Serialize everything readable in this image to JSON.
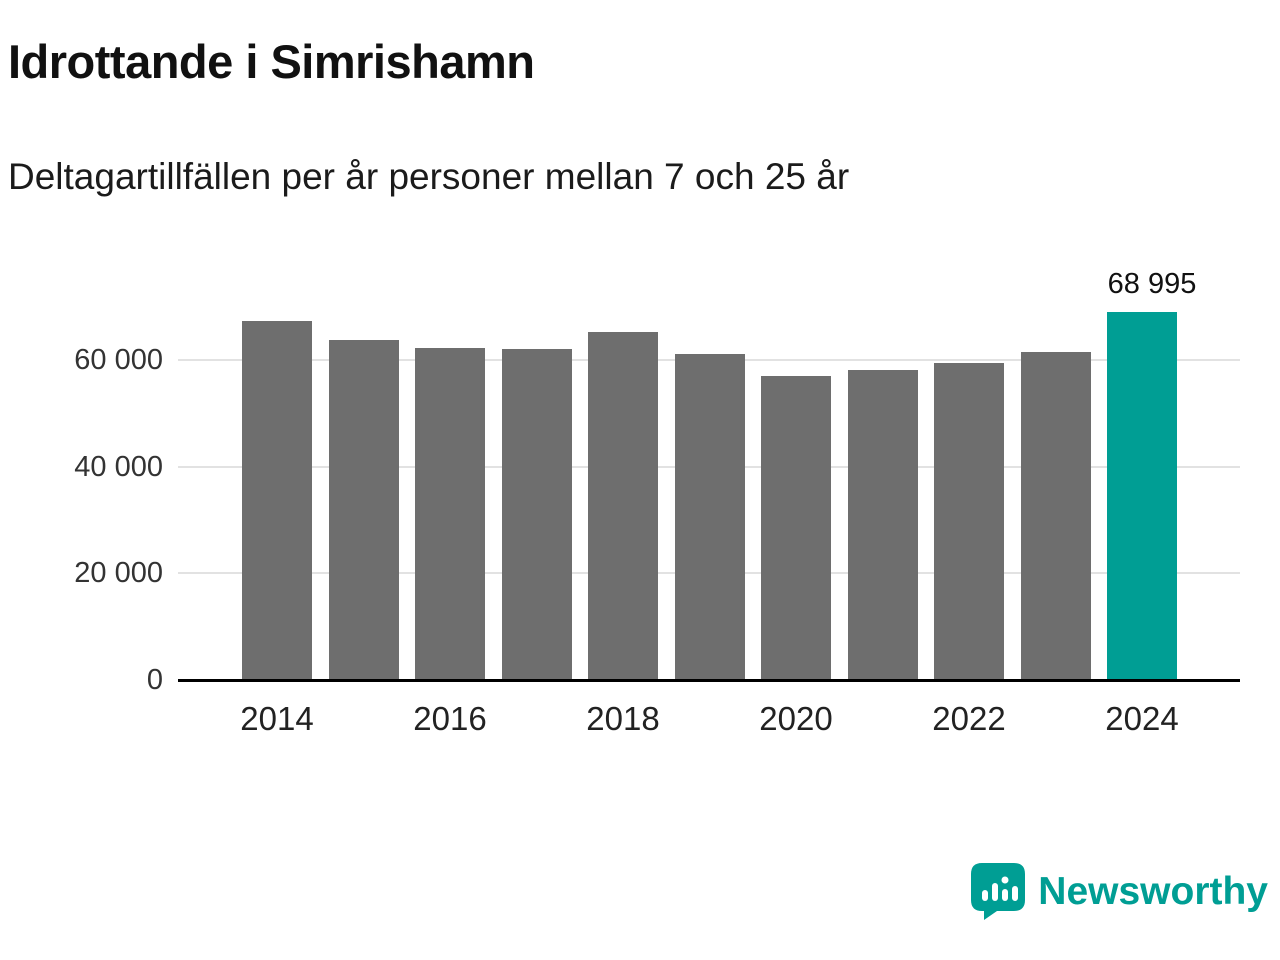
{
  "title": "Idrottande i Simrishamn",
  "subtitle": "Deltagartillfällen per år personer mellan 7 och 25 år",
  "branding": {
    "logo_text": "Newsworthy",
    "logo_icon": "bar-chart-speech-bubble-icon"
  },
  "colors": {
    "bar": "#6e6e6e",
    "highlight": "#009e94",
    "grid": "#e2e2e2",
    "axis": "#000000",
    "accent": "#009e94"
  },
  "chart_data": {
    "type": "bar",
    "title": "Idrottande i Simrishamn",
    "subtitle": "Deltagartillfällen per år personer mellan 7 och 25 år",
    "categories": [
      "2014",
      "2015",
      "2016",
      "2017",
      "2018",
      "2019",
      "2020",
      "2021",
      "2022",
      "2023",
      "2024"
    ],
    "values": [
      67300,
      63800,
      62300,
      62100,
      65200,
      61200,
      57000,
      58100,
      59500,
      61500,
      68995
    ],
    "highlight_index": 10,
    "ylim": [
      0,
      75000
    ],
    "yticks": [
      0,
      20000,
      40000,
      60000
    ],
    "ytick_labels": [
      "0",
      "20 000",
      "40 000",
      "60 000"
    ],
    "xtick_labels": [
      "2014",
      "2016",
      "2018",
      "2020",
      "2022",
      "2024"
    ],
    "grid": true,
    "legend": false,
    "annotation": {
      "index": 10,
      "text": "68 995"
    }
  }
}
